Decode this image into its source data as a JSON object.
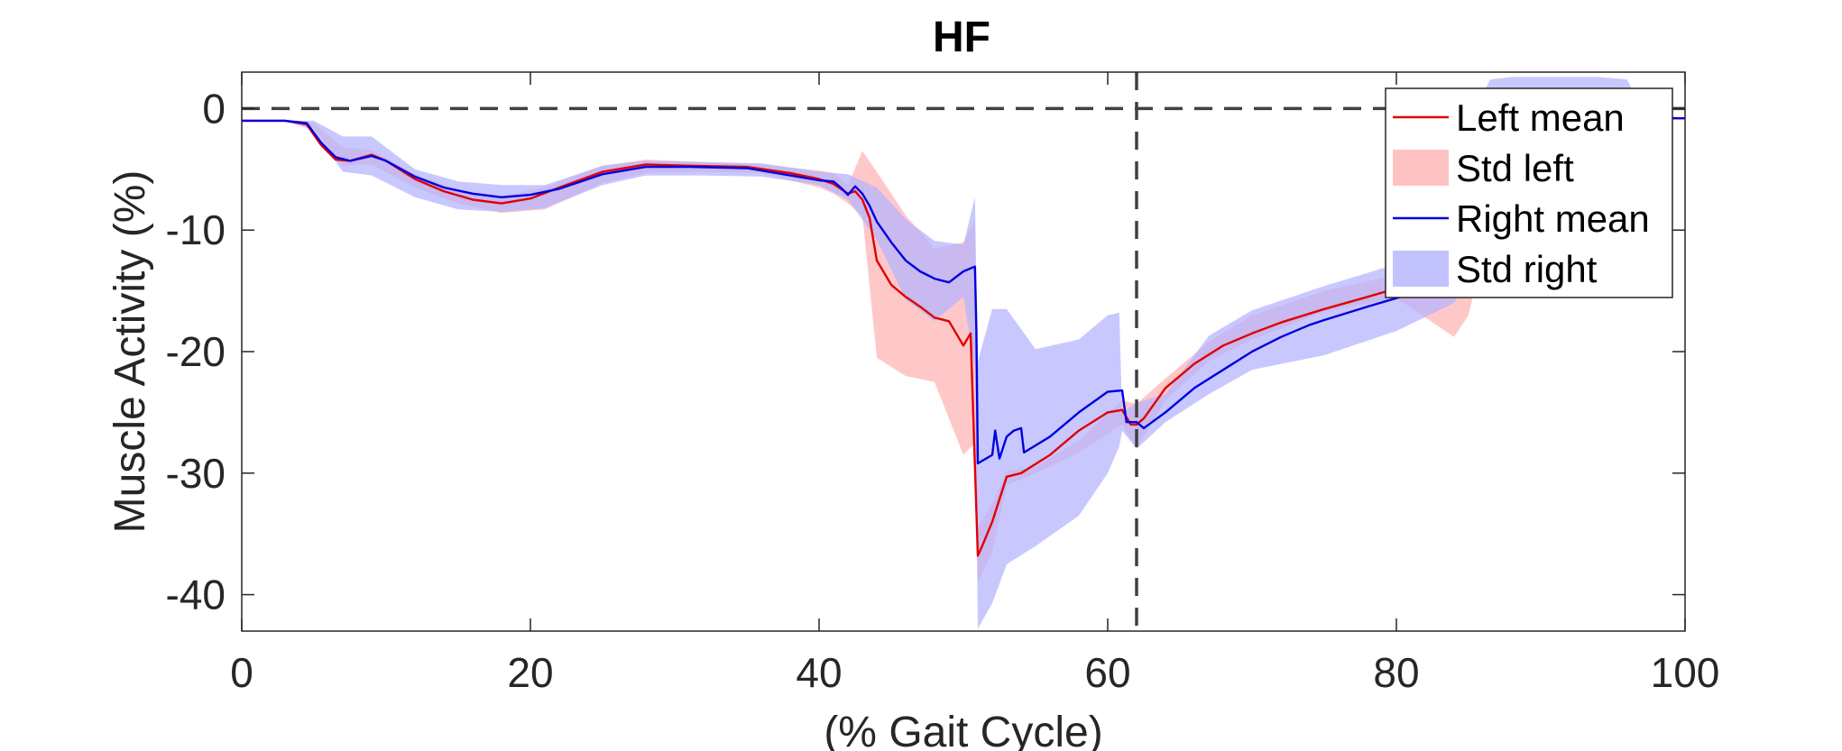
{
  "chart_data": {
    "type": "line",
    "title": "HF",
    "xlabel": "(% Gait Cycle)",
    "ylabel": "Muscle Activity (%)",
    "xlim": [
      0,
      100
    ],
    "ylim": [
      -43,
      3
    ],
    "xticks": [
      0,
      20,
      40,
      60,
      80,
      100
    ],
    "yticks": [
      0,
      -10,
      -20,
      -30,
      -40
    ],
    "xtick_labels": [
      "0",
      "20",
      "40",
      "60",
      "80",
      "100"
    ],
    "ytick_labels": [
      "0",
      "-10",
      "-20",
      "-30",
      "-40"
    ],
    "grid": false,
    "legend_position": "top-right",
    "colors": {
      "left_mean": "#e00000",
      "std_left": "#ffb3b3",
      "right_mean": "#0000e0",
      "std_right": "#b3b3ff",
      "reference": "#404040"
    },
    "reference_lines": [
      {
        "orientation": "horizontal",
        "y": 0,
        "style": "dashed"
      },
      {
        "orientation": "vertical",
        "x": 62,
        "style": "dashed"
      }
    ],
    "series": [
      {
        "name": "Left mean",
        "kind": "line",
        "x": [
          0,
          3,
          4.5,
          5.5,
          6.5,
          7.5,
          9,
          10,
          12,
          14,
          16,
          18,
          20,
          22,
          25,
          28,
          31,
          35,
          38,
          40,
          41,
          41.5,
          42,
          42.5,
          43,
          43.5,
          44,
          45,
          46,
          47,
          48,
          49,
          50,
          50.5,
          51,
          51.3,
          52,
          53,
          54,
          56,
          58,
          60,
          61,
          61.6,
          62,
          62.5,
          64,
          66,
          68,
          70,
          72,
          75,
          78,
          80,
          82,
          84,
          86,
          88,
          90,
          95,
          100
        ],
        "y": [
          -1,
          -1,
          -1.3,
          -3,
          -4.2,
          -4.3,
          -3.8,
          -4.3,
          -5.8,
          -6.8,
          -7.5,
          -7.8,
          -7.4,
          -6.5,
          -5.2,
          -4.6,
          -4.7,
          -4.8,
          -5.3,
          -5.8,
          -6.2,
          -6.6,
          -7,
          -6.8,
          -7.5,
          -9,
          -12.5,
          -14.5,
          -15.5,
          -16.3,
          -17.2,
          -17.5,
          -19.5,
          -18.5,
          -36.8,
          -36,
          -34,
          -30.3,
          -30,
          -28.5,
          -26.5,
          -25,
          -24.8,
          -26,
          -26,
          -25.5,
          -23,
          -21,
          -19.5,
          -18.5,
          -17.6,
          -16.5,
          -15.5,
          -14.8,
          -14,
          -13.2,
          -12,
          -9.5,
          -4,
          -0.8,
          -0.8
        ]
      },
      {
        "name": "Std left",
        "kind": "band",
        "x": [
          0,
          3,
          5,
          7,
          9,
          12,
          15,
          18,
          21,
          25,
          28,
          32,
          36,
          40,
          41,
          42,
          43,
          44,
          46,
          48,
          50,
          50.8,
          51,
          52,
          53,
          55,
          58,
          61,
          62,
          64,
          67,
          70,
          75,
          80,
          84,
          85,
          86,
          88,
          90,
          95,
          100
        ],
        "upper": [
          -1,
          -1,
          -1.2,
          -3.2,
          -3.4,
          -5.4,
          -6.7,
          -7.2,
          -6.5,
          -4.7,
          -4.2,
          -4.4,
          -4.6,
          -5.1,
          -5.3,
          -6.3,
          -3.5,
          -5.2,
          -8.8,
          -11.5,
          -11,
          -9.3,
          -34.5,
          -32.5,
          -29.8,
          -29.5,
          -27.3,
          -24,
          -24.3,
          -22.2,
          -19.2,
          -17,
          -15,
          -13.7,
          -12.8,
          -5,
          -2,
          -1,
          -0.8,
          -0.8,
          -0.8
        ],
        "lower": [
          -1,
          -1,
          -1.6,
          -4.7,
          -4.6,
          -6.5,
          -7.8,
          -8.6,
          -8.3,
          -6.1,
          -5.3,
          -5.2,
          -5.3,
          -6.5,
          -7,
          -7.8,
          -8.8,
          -20.5,
          -22,
          -22.5,
          -28.5,
          -27.5,
          -39,
          -36.5,
          -31,
          -30,
          -28.3,
          -26,
          -28,
          -24,
          -20.8,
          -19,
          -16.7,
          -15.6,
          -18.8,
          -17,
          -12,
          -5,
          -1,
          -0.8,
          -0.8
        ]
      },
      {
        "name": "Right mean",
        "kind": "line",
        "x": [
          0,
          3,
          4.5,
          5.5,
          6.5,
          7.5,
          9,
          10,
          12,
          14,
          16,
          18,
          20,
          22,
          25,
          28,
          31,
          35,
          38,
          40,
          41,
          41.5,
          42,
          42.5,
          43,
          43.5,
          44,
          45,
          46,
          47,
          48,
          49,
          50,
          50.8,
          50.9,
          51,
          52,
          52.2,
          52.5,
          53,
          53.5,
          54,
          54.2,
          56,
          58,
          60,
          61,
          61.3,
          62,
          62.5,
          64,
          66,
          68,
          70,
          72,
          74,
          75,
          78,
          80,
          82,
          84,
          86,
          88,
          90,
          95,
          100
        ],
        "y": [
          -1,
          -1,
          -1.2,
          -2.8,
          -4,
          -4.3,
          -3.9,
          -4.3,
          -5.6,
          -6.5,
          -7,
          -7.3,
          -7.1,
          -6.6,
          -5.4,
          -4.8,
          -4.8,
          -4.9,
          -5.5,
          -5.9,
          -6,
          -6.5,
          -7.1,
          -6.4,
          -7,
          -8,
          -9.3,
          -11,
          -12.5,
          -13.4,
          -14,
          -14.3,
          -13.4,
          -13,
          -18.3,
          -29.2,
          -28.5,
          -26.5,
          -28.8,
          -27,
          -26.5,
          -26.3,
          -28.3,
          -27,
          -25,
          -23.3,
          -23.2,
          -25.8,
          -25.8,
          -26.3,
          -25,
          -23,
          -21.5,
          -20,
          -18.8,
          -17.8,
          -17.4,
          -16.3,
          -15.6,
          -14.8,
          -13.8,
          -12.5,
          -9.5,
          -4,
          -0.8,
          -0.8
        ]
      },
      {
        "name": "Std right",
        "kind": "band",
        "x": [
          0,
          3,
          5,
          7,
          9,
          12,
          15,
          18,
          21,
          25,
          28,
          32,
          36,
          40,
          42,
          44,
          46,
          48,
          50,
          50.8,
          51,
          52,
          53,
          55,
          58,
          60,
          60.8,
          61,
          62,
          64,
          67,
          70,
          75,
          80,
          84,
          86,
          86.5,
          88,
          90,
          94,
          96,
          97,
          100
        ],
        "upper": [
          -1,
          -1,
          -1,
          -2.3,
          -2.3,
          -5,
          -6,
          -6.3,
          -6.3,
          -4.7,
          -4.3,
          -4.4,
          -4.5,
          -5.2,
          -5.4,
          -6.5,
          -9.1,
          -10.9,
          -11.2,
          -7.3,
          -20.8,
          -16.5,
          -16.5,
          -19.8,
          -19,
          -17,
          -16.8,
          -25,
          -24.2,
          -23.5,
          -18.7,
          -16.6,
          -14.6,
          -12.8,
          -11.7,
          1.2,
          2.4,
          2.6,
          2.6,
          2.6,
          2.4,
          -0.2,
          -0.8
        ],
        "lower": [
          -1,
          -1,
          -1.8,
          -5.2,
          -5.5,
          -7.3,
          -8.3,
          -8.5,
          -8.2,
          -6.3,
          -5.5,
          -5.5,
          -5.6,
          -6.3,
          -7.5,
          -10.8,
          -15.7,
          -17.5,
          -15.5,
          -21.5,
          -42.8,
          -40.7,
          -37.5,
          -36,
          -33.5,
          -30,
          -27.8,
          -26.5,
          -28,
          -25.8,
          -23.5,
          -21.5,
          -20.3,
          -18.3,
          -16,
          -12.5,
          -10,
          -5,
          -1,
          -0.8,
          -0.8,
          -0.8,
          -0.8
        ]
      }
    ],
    "legend": {
      "entries": [
        {
          "label": "Left mean",
          "swatch": "line",
          "color_key": "left_mean"
        },
        {
          "label": "Std left",
          "swatch": "patch",
          "color_key": "std_left"
        },
        {
          "label": "Right mean",
          "swatch": "line",
          "color_key": "right_mean"
        },
        {
          "label": "Std right",
          "swatch": "patch",
          "color_key": "std_right"
        }
      ]
    }
  }
}
